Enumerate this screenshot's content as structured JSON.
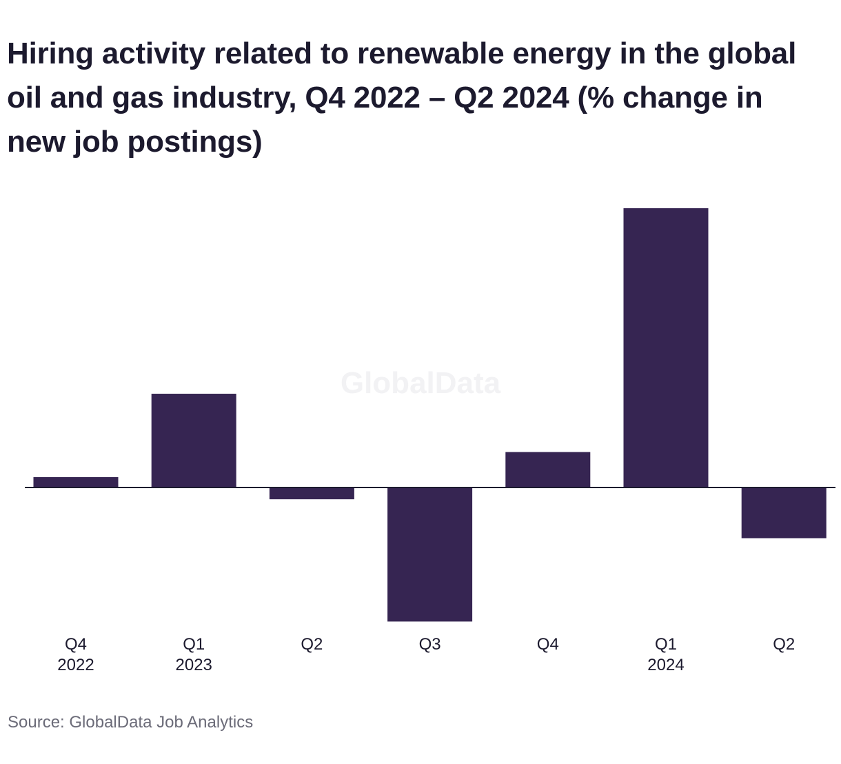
{
  "title": "Hiring activity related to renewable energy in the global oil and gas industry, Q4 2022 – Q2 2024 (% change in new job postings)",
  "watermark": "GlobalData",
  "source": "Source: GlobalData Job Analytics",
  "colors": {
    "bar": "#362552",
    "axis": "#1c1a2e",
    "text": "#1c1a2e",
    "source_text": "#6b6b78"
  },
  "chart_data": {
    "type": "bar",
    "title": "Hiring activity related to renewable energy in the global oil and gas industry, Q4 2022 – Q2 2024 (% change in new job postings)",
    "xlabel": "",
    "ylabel": "",
    "grid": false,
    "categories": [
      {
        "quarter": "Q4",
        "year": "2022"
      },
      {
        "quarter": "Q1",
        "year": "2023"
      },
      {
        "quarter": "Q2",
        "year": ""
      },
      {
        "quarter": "Q3",
        "year": ""
      },
      {
        "quarter": "Q4",
        "year": ""
      },
      {
        "quarter": "Q1",
        "year": "2024"
      },
      {
        "quarter": "Q2",
        "year": ""
      }
    ],
    "values": [
      1.5,
      13.5,
      -1.7,
      -19.3,
      5.1,
      40.2,
      -7.3
    ],
    "ylim": [
      -20,
      41
    ]
  }
}
